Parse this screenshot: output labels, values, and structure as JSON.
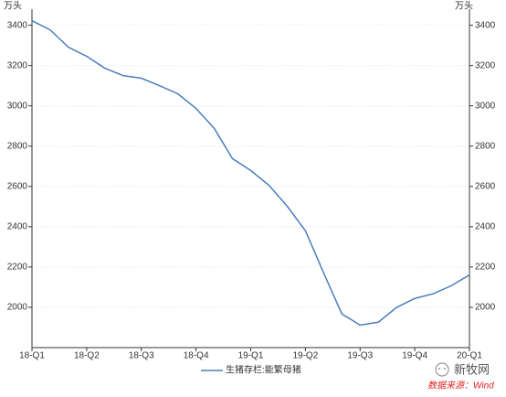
{
  "chart_data": {
    "type": "line",
    "y_label": "万头",
    "y2_label": "万头",
    "x": [
      0,
      1,
      2,
      3,
      4,
      5,
      6,
      7,
      8,
      9,
      10,
      11,
      12,
      13,
      14,
      15,
      16,
      17,
      18,
      19,
      20,
      21,
      22,
      23,
      24
    ],
    "xlim": [
      0,
      24
    ],
    "xticks": [
      {
        "value": 0,
        "label": "18-Q1"
      },
      {
        "value": 3,
        "label": "18-Q2"
      },
      {
        "value": 6,
        "label": "18-Q3"
      },
      {
        "value": 9,
        "label": "18-Q4"
      },
      {
        "value": 12,
        "label": "19-Q1"
      },
      {
        "value": 15,
        "label": "19-Q2"
      },
      {
        "value": 18,
        "label": "19-Q3"
      },
      {
        "value": 21,
        "label": "19-Q4"
      },
      {
        "value": 24,
        "label": "20-Q1"
      }
    ],
    "ylim": [
      1800,
      3480
    ],
    "yticks": [
      2000,
      2200,
      2400,
      2600,
      2800,
      3000,
      3200,
      3400
    ],
    "y2lim": [
      1800,
      3480
    ],
    "y2ticks": [
      2000,
      2200,
      2400,
      2600,
      2800,
      3000,
      3200,
      3400
    ],
    "grid": true,
    "series": [
      {
        "name": "生猪存栏:能繁母猪",
        "color": "#4a7ebb",
        "values": [
          3423,
          3377,
          3291,
          3246,
          3187,
          3150,
          3137,
          3100,
          3060,
          2987,
          2888,
          2738,
          2679,
          2606,
          2502,
          2380,
          2171,
          1967,
          1912,
          1926,
          1999,
          2044,
          2067,
          2107,
          2161
        ]
      }
    ],
    "watermark": "新牧网",
    "source": "数据来源：Wind"
  }
}
